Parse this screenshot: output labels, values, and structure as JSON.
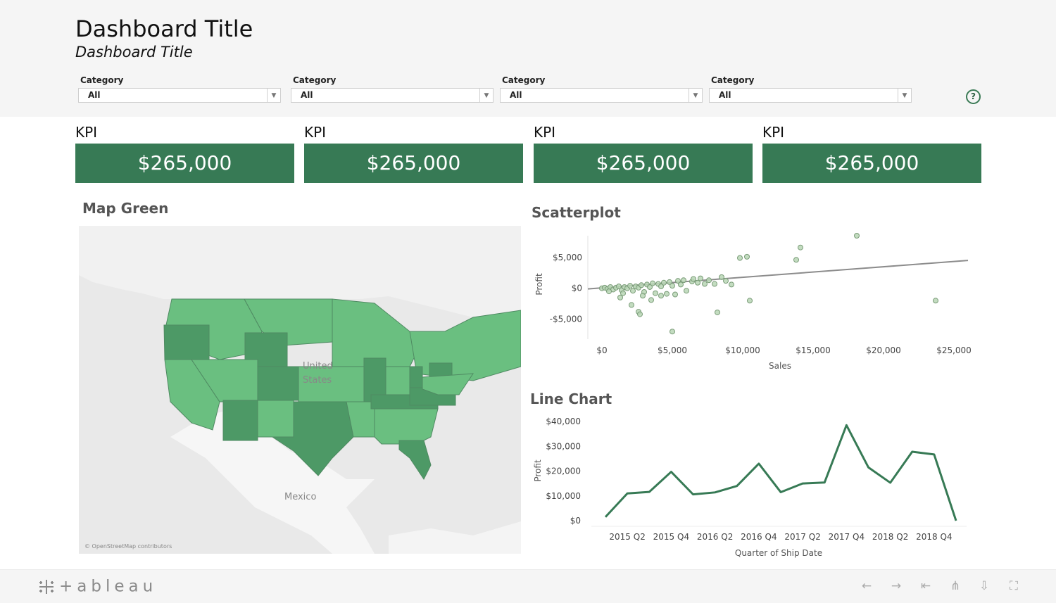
{
  "header": {
    "title": "Dashboard Title",
    "subtitle": "Dashboard Title",
    "help_glyph": "?"
  },
  "filters": [
    {
      "label": "Category",
      "value": "All"
    },
    {
      "label": "Category",
      "value": "All"
    },
    {
      "label": "Category",
      "value": "All"
    },
    {
      "label": "Category",
      "value": "All"
    }
  ],
  "kpis": [
    {
      "label": "KPI",
      "value": "$265,000"
    },
    {
      "label": "KPI",
      "value": "$265,000"
    },
    {
      "label": "KPI",
      "value": "$265,000"
    },
    {
      "label": "KPI",
      "value": "$265,000"
    }
  ],
  "map": {
    "title": "Map Green",
    "country_label_1": "United",
    "country_label_2": "States",
    "mexico_label": "Mexico",
    "attribution": "© OpenStreetMap contributors"
  },
  "chart_data": [
    {
      "type": "scatter",
      "title": "Scatterplot",
      "xlabel": "Sales",
      "ylabel": "Profit",
      "xlim": [
        -1000,
        26500
      ],
      "ylim": [
        -8000,
        8500
      ],
      "x_ticks": [
        0,
        5000,
        10000,
        15000,
        20000,
        25000
      ],
      "x_tick_labels": [
        "$0",
        "$5,000",
        "$10,000",
        "$15,000",
        "$20,000",
        "$25,000"
      ],
      "y_ticks": [
        5000,
        0,
        -5000
      ],
      "y_tick_labels": [
        "$5,000",
        "$0",
        "-$5,000"
      ],
      "trend": {
        "x": [
          -1000,
          26000
        ],
        "y": [
          -100,
          4500
        ]
      },
      "points": [
        [
          0,
          0
        ],
        [
          200,
          100
        ],
        [
          400,
          -100
        ],
        [
          600,
          200
        ],
        [
          800,
          -200
        ],
        [
          1000,
          100
        ],
        [
          1200,
          300
        ],
        [
          1400,
          -300
        ],
        [
          1600,
          200
        ],
        [
          1800,
          0
        ],
        [
          2000,
          400
        ],
        [
          2200,
          -400
        ],
        [
          2400,
          300
        ],
        [
          2600,
          100
        ],
        [
          2800,
          500
        ],
        [
          3000,
          -600
        ],
        [
          3200,
          600
        ],
        [
          3400,
          200
        ],
        [
          3600,
          800
        ],
        [
          3800,
          -800
        ],
        [
          4000,
          700
        ],
        [
          4200,
          300
        ],
        [
          4400,
          900
        ],
        [
          4600,
          -900
        ],
        [
          4800,
          1000
        ],
        [
          5000,
          400
        ],
        [
          5200,
          -1000
        ],
        [
          5400,
          1200
        ],
        [
          5600,
          600
        ],
        [
          5800,
          1300
        ],
        [
          6000,
          -400
        ],
        [
          6400,
          1100
        ],
        [
          6800,
          900
        ],
        [
          7000,
          1600
        ],
        [
          7600,
          1300
        ],
        [
          8000,
          700
        ],
        [
          8800,
          1200
        ],
        [
          9200,
          600
        ],
        [
          2600,
          -3800
        ],
        [
          2700,
          -4200
        ],
        [
          500,
          -500
        ],
        [
          1300,
          -1500
        ],
        [
          2100,
          -2700
        ],
        [
          3500,
          -1900
        ],
        [
          4200,
          -1200
        ],
        [
          5000,
          -7000
        ],
        [
          8200,
          -3900
        ],
        [
          9800,
          4900
        ],
        [
          10300,
          5100
        ],
        [
          10500,
          -2000
        ],
        [
          13800,
          4600
        ],
        [
          14100,
          6600
        ],
        [
          18100,
          8500
        ],
        [
          23700,
          -2000
        ],
        [
          8500,
          1800
        ],
        [
          6500,
          1500
        ],
        [
          7300,
          700
        ],
        [
          1500,
          -800
        ],
        [
          2900,
          -1200
        ]
      ]
    },
    {
      "type": "line",
      "title": "Line Chart",
      "xlabel": "Quarter of Ship Date",
      "ylabel": "Profit",
      "ylim": [
        0,
        40000
      ],
      "y_ticks": [
        40000,
        30000,
        20000,
        10000,
        0
      ],
      "y_tick_labels": [
        "$40,000",
        "$30,000",
        "$20,000",
        "$10,000",
        "$0"
      ],
      "x_tick_labels": [
        "2015 Q2",
        "2015 Q4",
        "2016 Q2",
        "2016 Q4",
        "2017 Q2",
        "2017 Q4",
        "2018 Q2",
        "2018 Q4"
      ],
      "x": [
        "2015 Q1",
        "2015 Q2",
        "2015 Q3",
        "2015 Q4",
        "2016 Q1",
        "2016 Q2",
        "2016 Q3",
        "2016 Q4",
        "2017 Q1",
        "2017 Q2",
        "2017 Q3",
        "2017 Q4",
        "2018 Q1",
        "2018 Q2",
        "2018 Q3",
        "2018 Q4",
        "2019 Q1"
      ],
      "values": [
        1500,
        11000,
        11600,
        19700,
        10600,
        11400,
        14000,
        23000,
        11500,
        15000,
        15400,
        38500,
        21500,
        15300,
        27800,
        26700,
        0
      ]
    }
  ],
  "footer": {
    "logo_text": "+ableau",
    "icons": [
      "back-arrow-icon",
      "forward-arrow-icon",
      "reset-icon",
      "share-icon",
      "download-icon",
      "fullscreen-icon"
    ]
  },
  "colors": {
    "accent": "#377a55",
    "state_light": "#6abf80",
    "state_dark": "#4d9966"
  }
}
